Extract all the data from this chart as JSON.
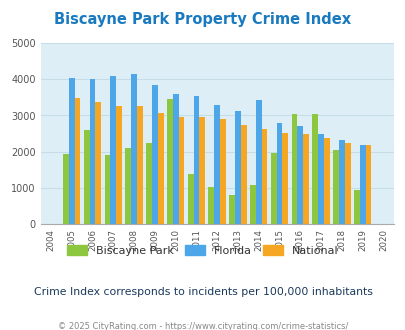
{
  "title": "Biscayne Park Property Crime Index",
  "years": [
    2005,
    2006,
    2007,
    2008,
    2009,
    2010,
    2011,
    2012,
    2013,
    2014,
    2015,
    2016,
    2017,
    2018,
    2019
  ],
  "biscayne_park": [
    1950,
    2600,
    1900,
    2100,
    2250,
    3450,
    1380,
    1020,
    800,
    1080,
    1980,
    3030,
    3050,
    2050,
    950
  ],
  "florida": [
    4020,
    4010,
    4100,
    4150,
    3850,
    3600,
    3530,
    3300,
    3130,
    3430,
    2800,
    2700,
    2500,
    2320,
    2180
  ],
  "national": [
    3470,
    3360,
    3270,
    3250,
    3060,
    2970,
    2950,
    2910,
    2750,
    2620,
    2510,
    2480,
    2390,
    2230,
    2180
  ],
  "ylim": [
    0,
    5000
  ],
  "yticks": [
    0,
    1000,
    2000,
    3000,
    4000,
    5000
  ],
  "xtick_years": [
    2004,
    2005,
    2006,
    2007,
    2008,
    2009,
    2010,
    2011,
    2012,
    2013,
    2014,
    2015,
    2016,
    2017,
    2018,
    2019,
    2020
  ],
  "bar_color_biscayne": "#8dc63f",
  "bar_color_florida": "#4da6e8",
  "bar_color_national": "#f5a623",
  "bg_color": "#ddeef6",
  "title_color": "#1a7abf",
  "subtitle": "Crime Index corresponds to incidents per 100,000 inhabitants",
  "footer": "© 2025 CityRating.com - https://www.cityrating.com/crime-statistics/",
  "legend_labels": [
    "Biscayne Park",
    "Florida",
    "National"
  ],
  "subtitle_color": "#1a3a5c",
  "footer_color": "#888888",
  "grid_color": "#c8dce8"
}
